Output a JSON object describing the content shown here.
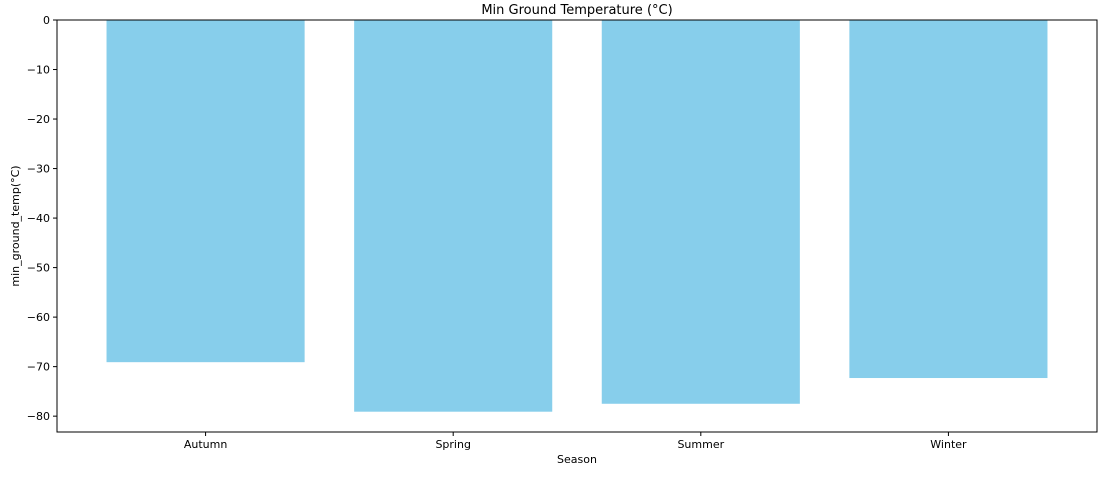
{
  "chart_data": {
    "type": "bar",
    "title": "Min Ground Temperature (°C)",
    "xlabel": "Season",
    "ylabel": "min_ground_temp(°C)",
    "categories": [
      "Autumn",
      "Spring",
      "Summer",
      "Winter"
    ],
    "values": [
      -69.1,
      -79.1,
      -77.5,
      -72.3
    ],
    "ylim": [
      -83.2,
      0
    ],
    "yticks": [
      0,
      -10,
      -20,
      -30,
      -40,
      -50,
      -60,
      -70,
      -80
    ],
    "ytick_labels": [
      "0",
      "−10",
      "−20",
      "−30",
      "−40",
      "−50",
      "−60",
      "−70",
      "−80"
    ],
    "bar_color": "#87ceeb",
    "grid": false,
    "legend": "none"
  }
}
